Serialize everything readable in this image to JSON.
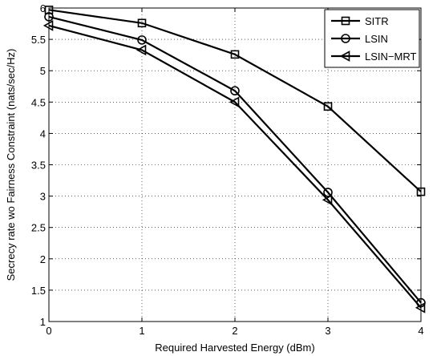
{
  "chart_data": {
    "type": "line",
    "xlabel": "Required Harvested Energy (dBm)",
    "ylabel": "Secrecy rate wo Fairness Constraint (nats/sec/Hz)",
    "xlim": [
      0,
      4
    ],
    "ylim": [
      1,
      6
    ],
    "x_ticks": [
      "0",
      "1",
      "2",
      "3",
      "4"
    ],
    "y_ticks": [
      "1",
      "1.5",
      "2",
      "2.5",
      "3",
      "3.5",
      "4",
      "4.5",
      "5",
      "5.5",
      "6"
    ],
    "grid": true,
    "legend_position": "top-right",
    "x": [
      0,
      1,
      2,
      3,
      4
    ],
    "series": [
      {
        "name": "SITR",
        "marker": "square",
        "values": [
          5.97,
          5.76,
          5.26,
          4.43,
          3.07
        ]
      },
      {
        "name": "LSIN",
        "marker": "circle",
        "values": [
          5.86,
          5.49,
          4.68,
          3.06,
          1.3
        ]
      },
      {
        "name": "LSIN−MRT",
        "marker": "triangle-left",
        "values": [
          5.72,
          5.33,
          4.5,
          2.94,
          1.22
        ]
      }
    ],
    "line_color": "#000000"
  }
}
